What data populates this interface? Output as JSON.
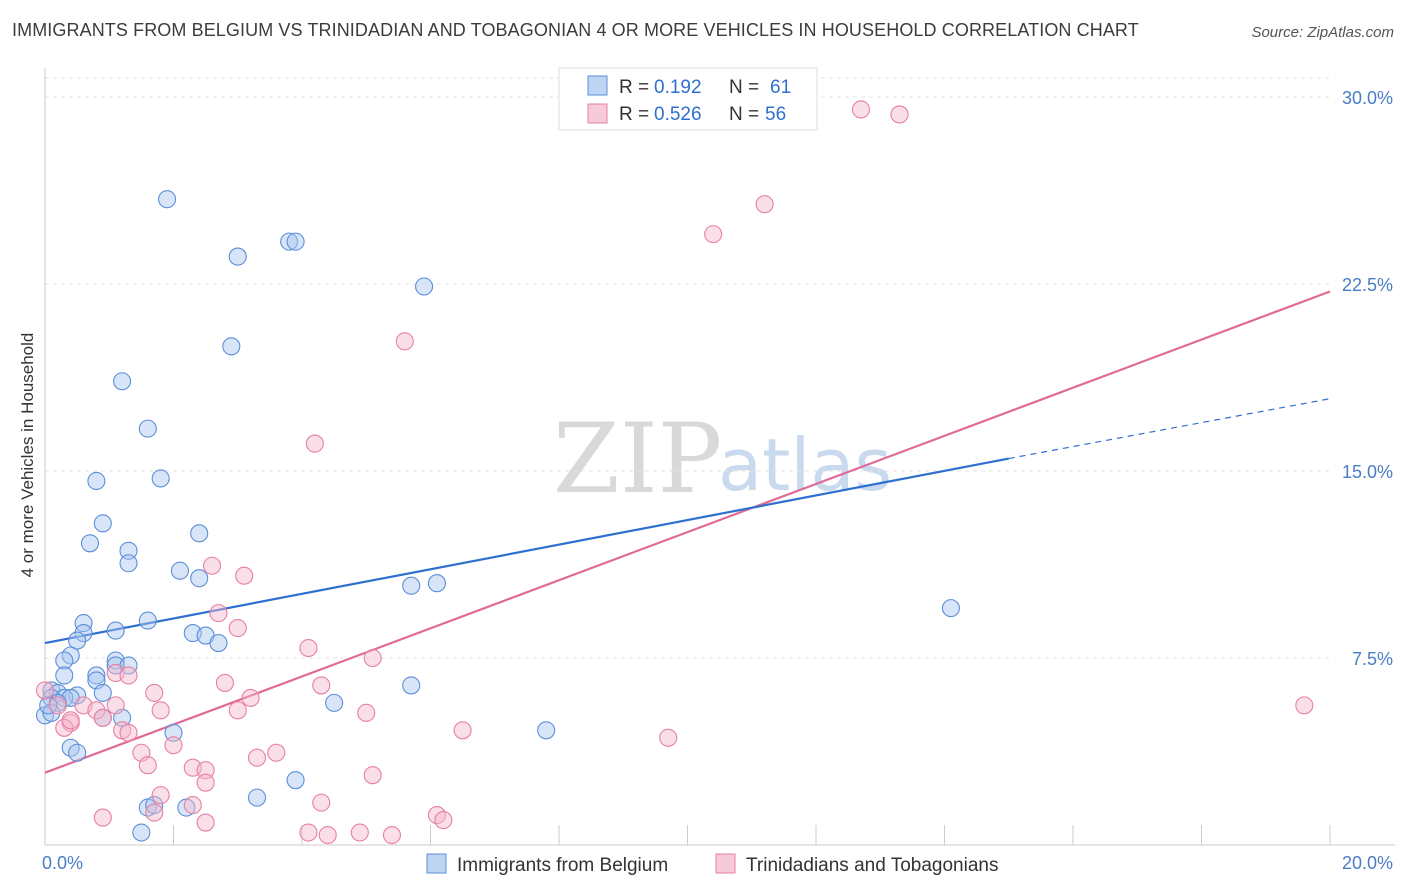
{
  "title": "IMMIGRANTS FROM BELGIUM VS TRINIDADIAN AND TOBAGONIAN 4 OR MORE VEHICLES IN HOUSEHOLD CORRELATION CHART",
  "source": "Source: ZipAtlas.com",
  "watermark": {
    "zip": "ZIP",
    "atlas": "atlas"
  },
  "colors": {
    "blue": "#2f6fd0",
    "blue_fill": "#a9c6ef",
    "pink": "#e06a97",
    "pink_fill": "#f4b8cc"
  },
  "chart_data": {
    "type": "scatter",
    "xlabel": "",
    "ylabel": "4 or more Vehicles in Household",
    "xlim": [
      0,
      20
    ],
    "ylim": [
      0,
      30
    ],
    "x_ticks": [
      {
        "value": 0,
        "label": "0.0%"
      },
      {
        "value": 20,
        "label": "20.0%"
      }
    ],
    "y_ticks": [
      {
        "value": 7.5,
        "label": "7.5%"
      },
      {
        "value": 15,
        "label": "15.0%"
      },
      {
        "value": 22.5,
        "label": "22.5%"
      },
      {
        "value": 30,
        "label": "30.0%"
      }
    ],
    "legend": [
      {
        "r_label": "R =",
        "r": "0.192",
        "n_label": "N =",
        "n": "61"
      },
      {
        "r_label": "R =",
        "r": "0.526",
        "n_label": "N =",
        "n": "56"
      }
    ],
    "series": [
      {
        "name": "Immigrants from Belgium",
        "trend": {
          "x0": 0,
          "y0": 8.1,
          "x1": 15,
          "y1": 15.5,
          "dash_x1": 20,
          "dash_y1": 17.9
        },
        "points": [
          [
            1.9,
            25.9
          ],
          [
            3.8,
            24.2
          ],
          [
            3.9,
            24.2
          ],
          [
            3.0,
            23.6
          ],
          [
            5.9,
            22.4
          ],
          [
            2.9,
            20.0
          ],
          [
            1.2,
            18.6
          ],
          [
            1.6,
            16.7
          ],
          [
            0.8,
            14.6
          ],
          [
            1.8,
            14.7
          ],
          [
            0.9,
            12.9
          ],
          [
            2.4,
            12.5
          ],
          [
            0.7,
            12.1
          ],
          [
            1.3,
            11.8
          ],
          [
            1.3,
            11.3
          ],
          [
            2.1,
            11.0
          ],
          [
            2.4,
            10.7
          ],
          [
            5.7,
            10.4
          ],
          [
            6.1,
            10.5
          ],
          [
            14.1,
            9.5
          ],
          [
            0.6,
            8.9
          ],
          [
            1.6,
            9.0
          ],
          [
            1.1,
            8.6
          ],
          [
            0.6,
            8.5
          ],
          [
            2.3,
            8.5
          ],
          [
            2.5,
            8.4
          ],
          [
            0.5,
            8.2
          ],
          [
            2.7,
            8.1
          ],
          [
            0.4,
            7.6
          ],
          [
            0.3,
            7.4
          ],
          [
            1.1,
            7.4
          ],
          [
            1.1,
            7.2
          ],
          [
            1.3,
            7.2
          ],
          [
            0.3,
            6.8
          ],
          [
            0.8,
            6.8
          ],
          [
            0.8,
            6.6
          ],
          [
            0.1,
            6.2
          ],
          [
            0.5,
            6.0
          ],
          [
            0.9,
            6.1
          ],
          [
            0.2,
            6.1
          ],
          [
            0.1,
            5.9
          ],
          [
            0.3,
            5.9
          ],
          [
            0.4,
            5.9
          ],
          [
            0.2,
            5.7
          ],
          [
            4.5,
            5.7
          ],
          [
            5.7,
            6.4
          ],
          [
            0.0,
            5.2
          ],
          [
            1.2,
            5.1
          ],
          [
            0.9,
            5.1
          ],
          [
            2.0,
            4.5
          ],
          [
            7.8,
            4.6
          ],
          [
            0.4,
            3.9
          ],
          [
            0.5,
            3.7
          ],
          [
            3.9,
            2.6
          ],
          [
            3.3,
            1.9
          ],
          [
            1.6,
            1.5
          ],
          [
            1.7,
            1.6
          ],
          [
            2.2,
            1.5
          ],
          [
            1.5,
            0.5
          ],
          [
            0.1,
            5.3
          ],
          [
            0.05,
            5.6
          ]
        ]
      },
      {
        "name": "Trinidadians and Tobagonians",
        "trend": {
          "x0": 0,
          "y0": 2.9,
          "x1": 20,
          "y1": 22.2
        },
        "points": [
          [
            12.7,
            29.5
          ],
          [
            13.3,
            29.3
          ],
          [
            11.2,
            25.7
          ],
          [
            10.4,
            24.5
          ],
          [
            5.6,
            20.2
          ],
          [
            4.2,
            16.1
          ],
          [
            2.6,
            11.2
          ],
          [
            3.1,
            10.8
          ],
          [
            2.7,
            9.3
          ],
          [
            3.0,
            8.7
          ],
          [
            4.1,
            7.9
          ],
          [
            5.1,
            7.5
          ],
          [
            1.1,
            6.9
          ],
          [
            1.3,
            6.8
          ],
          [
            2.8,
            6.5
          ],
          [
            4.3,
            6.4
          ],
          [
            1.7,
            6.1
          ],
          [
            3.2,
            5.9
          ],
          [
            1.1,
            5.6
          ],
          [
            0.2,
            5.6
          ],
          [
            0.6,
            5.6
          ],
          [
            0.8,
            5.4
          ],
          [
            1.8,
            5.4
          ],
          [
            3.0,
            5.4
          ],
          [
            5.0,
            5.3
          ],
          [
            0.9,
            5.1
          ],
          [
            0.4,
            4.9
          ],
          [
            0.3,
            4.7
          ],
          [
            1.2,
            4.6
          ],
          [
            1.3,
            4.5
          ],
          [
            6.5,
            4.6
          ],
          [
            9.7,
            4.3
          ],
          [
            2.0,
            4.0
          ],
          [
            1.5,
            3.7
          ],
          [
            3.6,
            3.7
          ],
          [
            3.3,
            3.5
          ],
          [
            1.6,
            3.2
          ],
          [
            2.3,
            3.1
          ],
          [
            2.5,
            3.0
          ],
          [
            5.1,
            2.8
          ],
          [
            2.5,
            2.5
          ],
          [
            1.8,
            2.0
          ],
          [
            2.3,
            1.6
          ],
          [
            4.3,
            1.7
          ],
          [
            1.7,
            1.3
          ],
          [
            0.9,
            1.1
          ],
          [
            2.5,
            0.9
          ],
          [
            6.1,
            1.2
          ],
          [
            6.2,
            1.0
          ],
          [
            4.1,
            0.5
          ],
          [
            4.4,
            0.4
          ],
          [
            4.9,
            0.5
          ],
          [
            5.4,
            0.4
          ],
          [
            19.6,
            5.6
          ],
          [
            0.0,
            6.2
          ],
          [
            0.4,
            5.0
          ]
        ]
      }
    ]
  }
}
